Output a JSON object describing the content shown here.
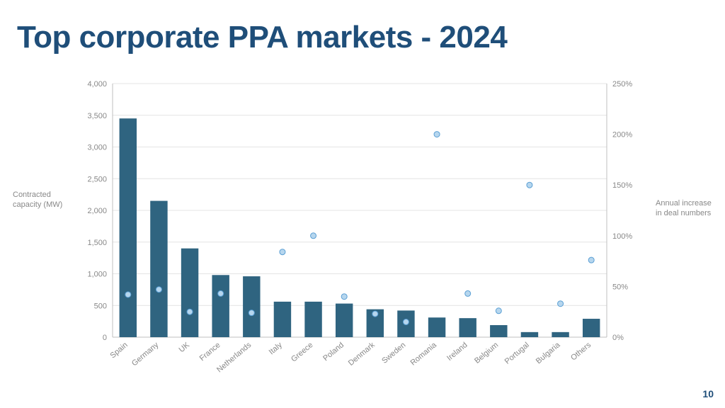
{
  "title": "Top corporate PPA markets - 2024",
  "page_number": "10",
  "y_left_label": "Contracted capacity (MW)",
  "y_right_label": "Annual increase in deal numbers",
  "chart": {
    "type": "bar+scatter",
    "background_color": "#ffffff",
    "grid_color": "#e4e4e4",
    "axis_color": "#bfbfbf",
    "bar_color": "#2f6480",
    "dot_fill": "#b6d6ee",
    "dot_stroke": "#5a9fd4",
    "tick_label_color": "#888888",
    "tick_fontsize": 11,
    "title_color": "#1f4e79",
    "title_fontsize": 44,
    "y_left": {
      "min": 0,
      "max": 4000,
      "step": 500,
      "ticks": [
        0,
        500,
        1000,
        1500,
        2000,
        2500,
        3000,
        3500,
        4000
      ]
    },
    "y_right": {
      "min": 0,
      "max": 250,
      "step": 50,
      "ticks": [
        0,
        50,
        100,
        150,
        200,
        250
      ],
      "suffix": "%"
    },
    "categories": [
      "Spain",
      "Germany",
      "UK",
      "France",
      "Netherlands",
      "Italy",
      "Greece",
      "Poland",
      "Denmark",
      "Sweden",
      "Romania",
      "Ireland",
      "Belgium",
      "Portugal",
      "Bulgaria",
      "Others"
    ],
    "bars_mw": [
      3450,
      2150,
      1400,
      980,
      960,
      560,
      560,
      530,
      440,
      420,
      310,
      300,
      190,
      80,
      80,
      290
    ],
    "dots_pct": [
      42,
      47,
      25,
      43,
      24,
      84,
      100,
      40,
      23,
      15,
      200,
      43,
      26,
      150,
      33,
      76
    ],
    "dots_present": [
      true,
      true,
      true,
      true,
      true,
      true,
      true,
      true,
      true,
      true,
      true,
      true,
      true,
      true,
      true,
      true
    ],
    "bar_width_ratio": 0.56,
    "dot_radius": 4
  }
}
